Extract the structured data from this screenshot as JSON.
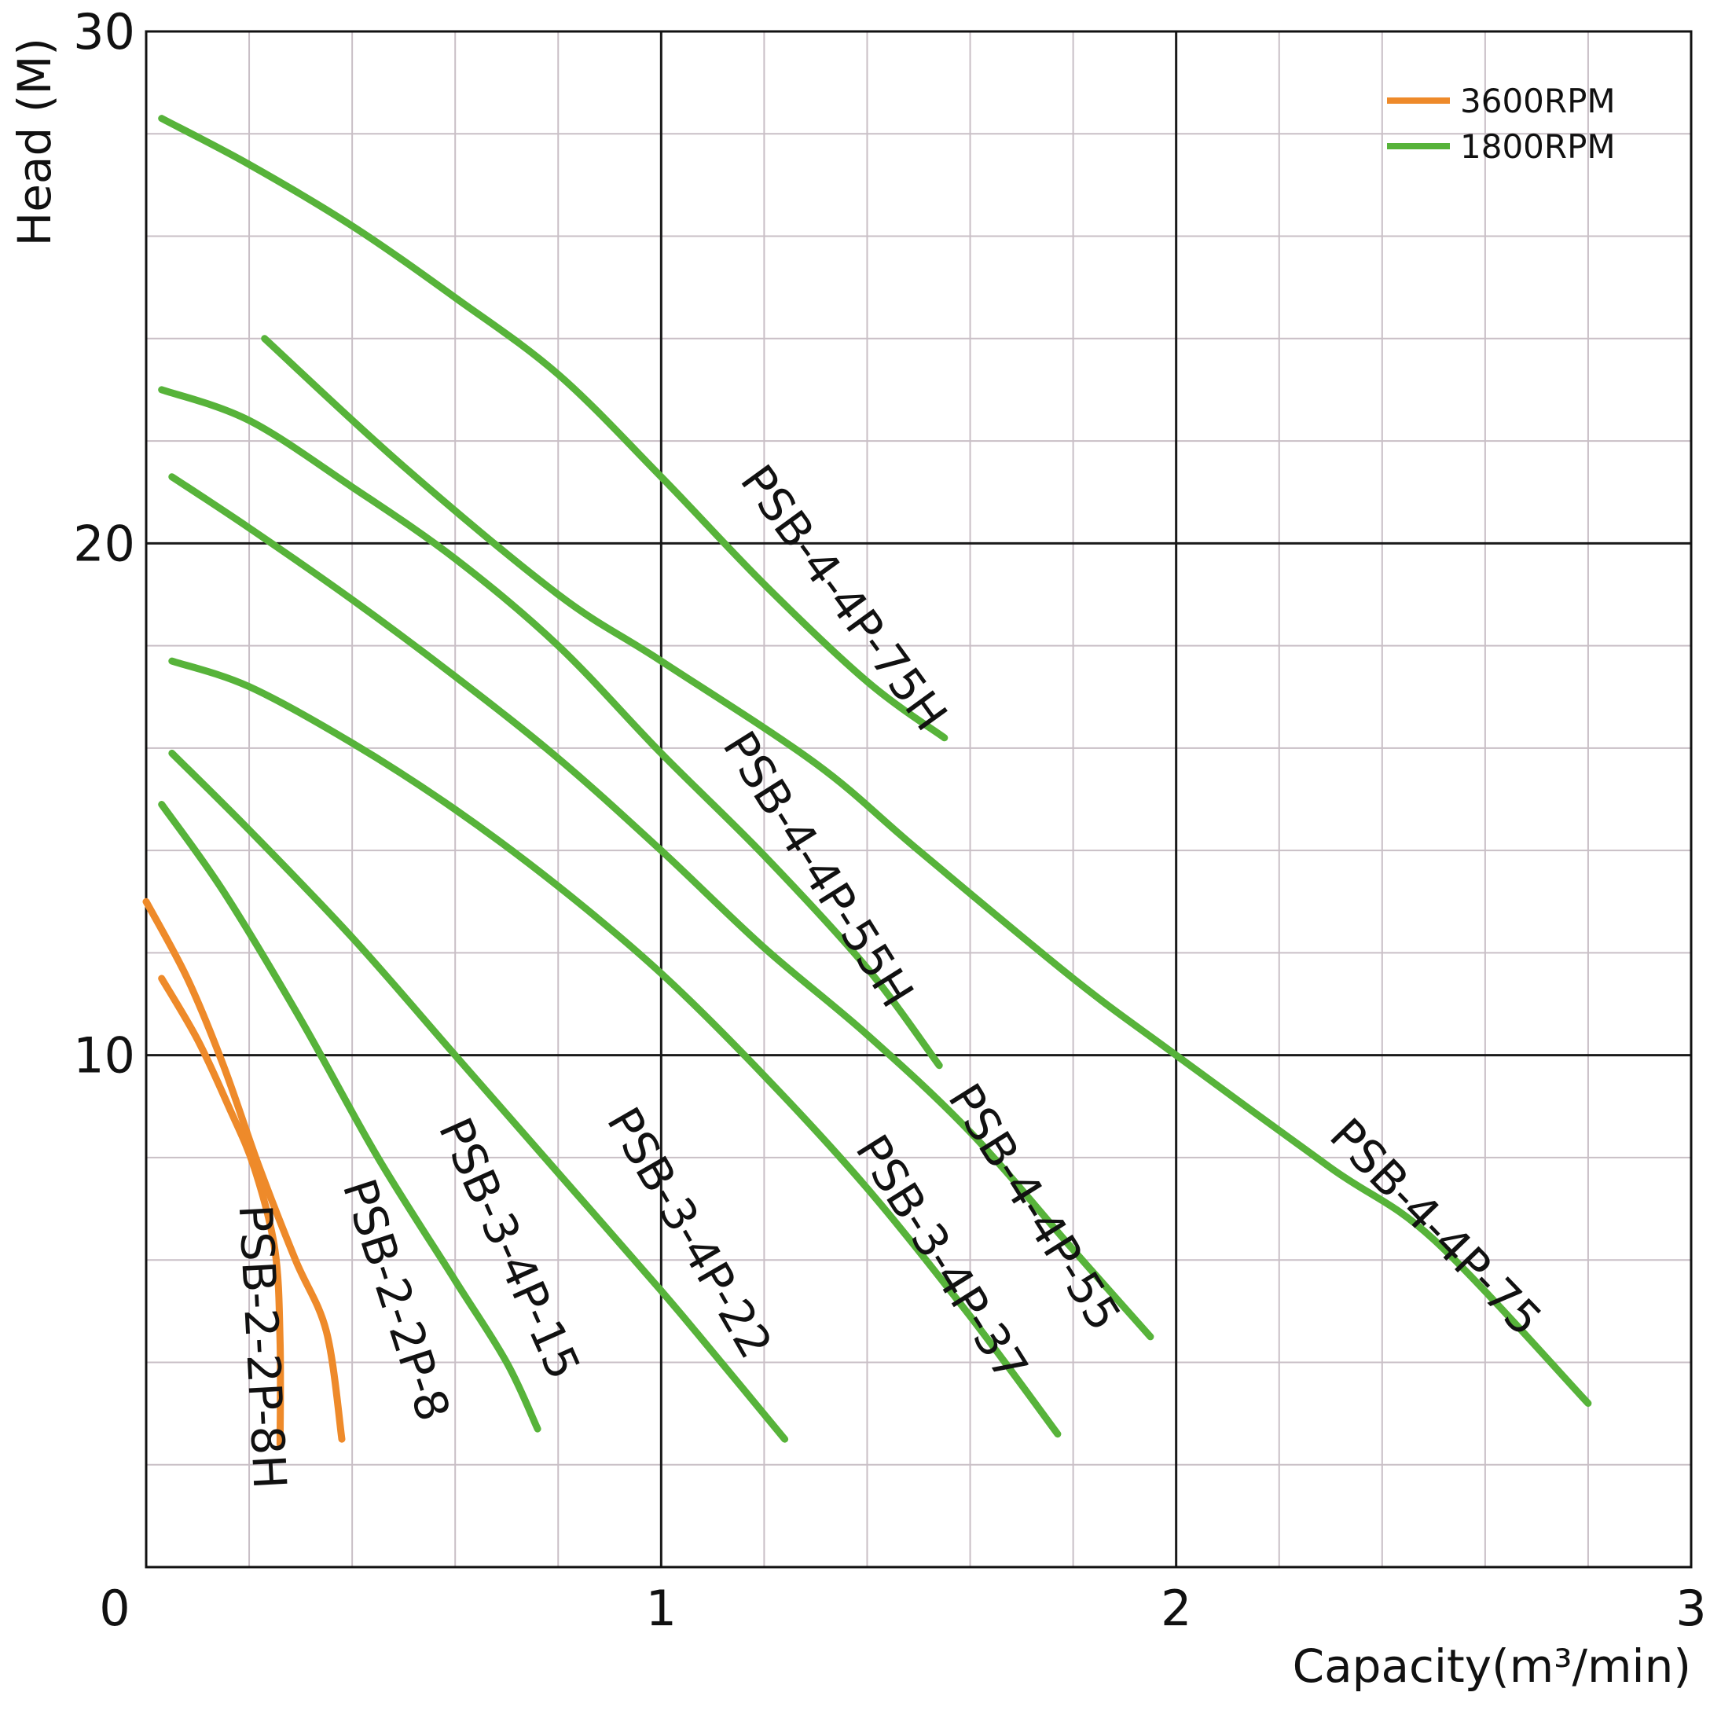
{
  "chart_data": {
    "type": "line",
    "title": "",
    "xlabel": "Capacity(m³/min)",
    "ylabel": "Head (M)",
    "xlim": [
      0,
      3
    ],
    "ylim": [
      0,
      30
    ],
    "x_ticks": [
      "0",
      "1",
      "2",
      "3"
    ],
    "y_ticks": [
      "10",
      "20",
      "30"
    ],
    "grid": true,
    "minor_grid": {
      "x_step": 0.2,
      "y_step": 2
    },
    "legend": {
      "placement": "top-right",
      "entries": [
        {
          "label": "3600RPM",
          "color": "#ee8a2a"
        },
        {
          "label": "1800RPM",
          "color": "#57b33a"
        }
      ]
    },
    "series": [
      {
        "name": "PSB-4-4P-75H",
        "rpm": "1800RPM",
        "color": "#57b33a",
        "x": [
          0.03,
          0.2,
          0.4,
          0.6,
          0.8,
          1.0,
          1.2,
          1.4,
          1.55
        ],
        "y": [
          28.3,
          27.4,
          26.2,
          24.8,
          23.3,
          21.3,
          19.2,
          17.3,
          16.2
        ],
        "label_at": {
          "x": 1.35,
          "y": 18.9,
          "angle": 54
        }
      },
      {
        "name": "PSB-4-4P-75",
        "rpm": "1800RPM",
        "color": "#57b33a",
        "x": [
          0.23,
          0.5,
          0.8,
          1.0,
          1.3,
          1.5,
          1.8,
          2.0,
          2.3,
          2.5,
          2.8
        ],
        "y": [
          24.0,
          21.5,
          19.0,
          17.7,
          15.7,
          14.0,
          11.5,
          10.0,
          7.8,
          6.4,
          3.2
        ],
        "label_at": {
          "x": 2.5,
          "y": 6.6,
          "angle": 46
        }
      },
      {
        "name": "PSB-4-4P-55H",
        "rpm": "1800RPM",
        "color": "#57b33a",
        "x": [
          0.03,
          0.2,
          0.4,
          0.6,
          0.8,
          1.0,
          1.2,
          1.4,
          1.54
        ],
        "y": [
          23.0,
          22.4,
          21.1,
          19.7,
          18.0,
          15.9,
          13.9,
          11.7,
          9.8
        ],
        "label_at": {
          "x": 1.3,
          "y": 13.6,
          "angle": 58
        }
      },
      {
        "name": "PSB-4-4P-55",
        "rpm": "1800RPM",
        "color": "#57b33a",
        "x": [
          0.05,
          0.2,
          0.4,
          0.6,
          0.8,
          1.0,
          1.2,
          1.4,
          1.6,
          1.8,
          1.95
        ],
        "y": [
          21.3,
          20.3,
          18.9,
          17.4,
          15.8,
          14.0,
          12.1,
          10.4,
          8.5,
          6.2,
          4.5
        ],
        "label_at": {
          "x": 1.72,
          "y": 7.0,
          "angle": 58
        }
      },
      {
        "name": "PSB-3-4P-37",
        "rpm": "1800RPM",
        "color": "#57b33a",
        "x": [
          0.05,
          0.2,
          0.4,
          0.6,
          0.8,
          1.0,
          1.2,
          1.4,
          1.6,
          1.77
        ],
        "y": [
          17.7,
          17.2,
          16.1,
          14.8,
          13.3,
          11.6,
          9.6,
          7.4,
          4.9,
          2.6
        ],
        "label_at": {
          "x": 1.54,
          "y": 6.0,
          "angle": 58
        }
      },
      {
        "name": "PSB-3-4P-22",
        "rpm": "1800RPM",
        "color": "#57b33a",
        "x": [
          0.05,
          0.2,
          0.4,
          0.6,
          0.8,
          1.0,
          1.1,
          1.24
        ],
        "y": [
          15.9,
          14.4,
          12.3,
          10.0,
          7.7,
          5.4,
          4.2,
          2.5
        ],
        "label_at": {
          "x": 1.05,
          "y": 6.5,
          "angle": 60
        }
      },
      {
        "name": "PSB-3-4P-15",
        "rpm": "1800RPM",
        "color": "#57b33a",
        "x": [
          0.03,
          0.15,
          0.3,
          0.45,
          0.6,
          0.7,
          0.76
        ],
        "y": [
          14.9,
          13.2,
          10.7,
          8.0,
          5.6,
          4.0,
          2.7
        ],
        "label_at": {
          "x": 0.7,
          "y": 6.2,
          "angle": 66
        }
      },
      {
        "name": "PSB-2-2P-8",
        "rpm": "3600RPM",
        "color": "#ee8a2a",
        "x": [
          0.0,
          0.08,
          0.15,
          0.22,
          0.29,
          0.35,
          0.38
        ],
        "y": [
          13.0,
          11.5,
          9.8,
          7.8,
          6.0,
          4.6,
          2.5
        ],
        "label_at": {
          "x": 0.48,
          "y": 5.2,
          "angle": 72
        }
      },
      {
        "name": "PSB-2-2P-8H",
        "rpm": "3600RPM",
        "color": "#ee8a2a",
        "x": [
          0.03,
          0.1,
          0.16,
          0.21,
          0.25,
          0.26,
          0.26
        ],
        "y": [
          11.5,
          10.3,
          9.0,
          7.8,
          6.2,
          4.4,
          2.4
        ],
        "label_at": {
          "x": 0.22,
          "y": 4.3,
          "angle": 87
        }
      }
    ]
  }
}
